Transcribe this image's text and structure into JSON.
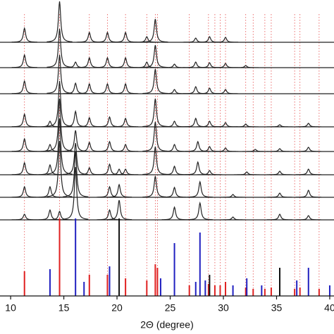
{
  "chart_data": {
    "type": "xrd",
    "xlabel": "2Θ (degree)",
    "xlim": [
      9.0,
      40.4
    ],
    "xticks": [
      10,
      15,
      20,
      25,
      30,
      35,
      40
    ],
    "line_color": "#222222",
    "patterns": [
      {
        "x": [
          11.3,
          14.6,
          17.4,
          19.1,
          20.8,
          22.8,
          23.6,
          27.4,
          28.7,
          30.2
        ],
        "values": [
          20,
          58,
          14,
          14,
          14,
          8,
          33,
          6,
          8,
          7
        ]
      },
      {
        "x": [
          11.3,
          14.6,
          16.1,
          17.4,
          19.1,
          20.8,
          22.8,
          23.6,
          25.4,
          27.4,
          28.7,
          30.2,
          32.1
        ],
        "values": [
          18,
          55,
          8,
          14,
          14,
          14,
          8,
          32,
          5,
          8,
          7,
          6,
          3
        ]
      },
      {
        "x": [
          11.3,
          14.6,
          16.1,
          17.4,
          19.1,
          20.8,
          23.6,
          25.4,
          27.4,
          28.7,
          30.2
        ],
        "values": [
          18,
          55,
          15,
          14,
          14,
          14,
          35,
          6,
          10,
          8,
          6
        ]
      },
      {
        "x": [
          11.3,
          13.7,
          14.6,
          16.1,
          17.4,
          19.3,
          20.8,
          23.6,
          25.4,
          27.4,
          28.7,
          30.2,
          32.1,
          35.3,
          38.0
        ],
        "values": [
          18,
          8,
          65,
          22,
          13,
          14,
          12,
          40,
          8,
          12,
          8,
          6,
          4,
          3,
          5
        ]
      },
      {
        "x": [
          11.3,
          13.7,
          14.6,
          16.1,
          17.4,
          19.3,
          20.8,
          23.6,
          25.4,
          27.6,
          28.7,
          30.2,
          33.0,
          35.3,
          38.0
        ],
        "values": [
          18,
          10,
          75,
          30,
          13,
          14,
          10,
          42,
          10,
          14,
          7,
          5,
          3,
          4,
          6
        ]
      },
      {
        "x": [
          11.3,
          13.7,
          14.6,
          16.1,
          17.4,
          19.3,
          20.2,
          20.8,
          23.6,
          25.4,
          27.6,
          28.7,
          32.2,
          35.3,
          38.0
        ],
        "values": [
          17,
          14,
          80,
          45,
          10,
          15,
          8,
          8,
          40,
          12,
          18,
          6,
          4,
          5,
          8
        ]
      },
      {
        "x": [
          11.3,
          13.7,
          14.6,
          16.1,
          19.3,
          20.2,
          23.6,
          25.4,
          27.8,
          30.9,
          35.3,
          38.0
        ],
        "values": [
          15,
          15,
          80,
          65,
          15,
          18,
          30,
          14,
          22,
          4,
          6,
          10
        ]
      },
      {
        "x": [
          11.3,
          13.7,
          14.6,
          16.1,
          19.3,
          20.2,
          25.4,
          27.8,
          30.9,
          35.3,
          38.0
        ],
        "values": [
          8,
          14,
          12,
          75,
          14,
          28,
          18,
          24,
          4,
          8,
          6
        ]
      }
    ],
    "references": [
      {
        "color": "#e02020",
        "guides": true,
        "x": [
          11.3,
          14.6,
          17.4,
          19.1,
          20.8,
          22.8,
          23.6,
          23.8,
          26.8,
          28.6,
          29.2,
          29.7,
          30.2,
          32.1,
          32.8,
          33.9,
          34.5,
          36.7,
          37.2,
          39.0
        ],
        "values": [
          35,
          110,
          30,
          30,
          25,
          22,
          45,
          40,
          15,
          17,
          15,
          15,
          20,
          12,
          10,
          10,
          12,
          10,
          12,
          10
        ]
      },
      {
        "color": "#2020c0",
        "guides": false,
        "x": [
          13.7,
          16.1,
          16.9,
          19.3,
          24.1,
          25.4,
          27.4,
          27.8,
          28.3,
          30.9,
          32.2,
          33.6,
          36.9,
          38.0,
          40.0
        ],
        "values": [
          38,
          110,
          20,
          42,
          25,
          75,
          20,
          90,
          22,
          15,
          25,
          15,
          22,
          40,
          15
        ]
      },
      {
        "color": "#111111",
        "guides": false,
        "x": [
          20.2,
          28.7,
          35.3
        ],
        "values": [
          110,
          30,
          40
        ]
      }
    ]
  }
}
